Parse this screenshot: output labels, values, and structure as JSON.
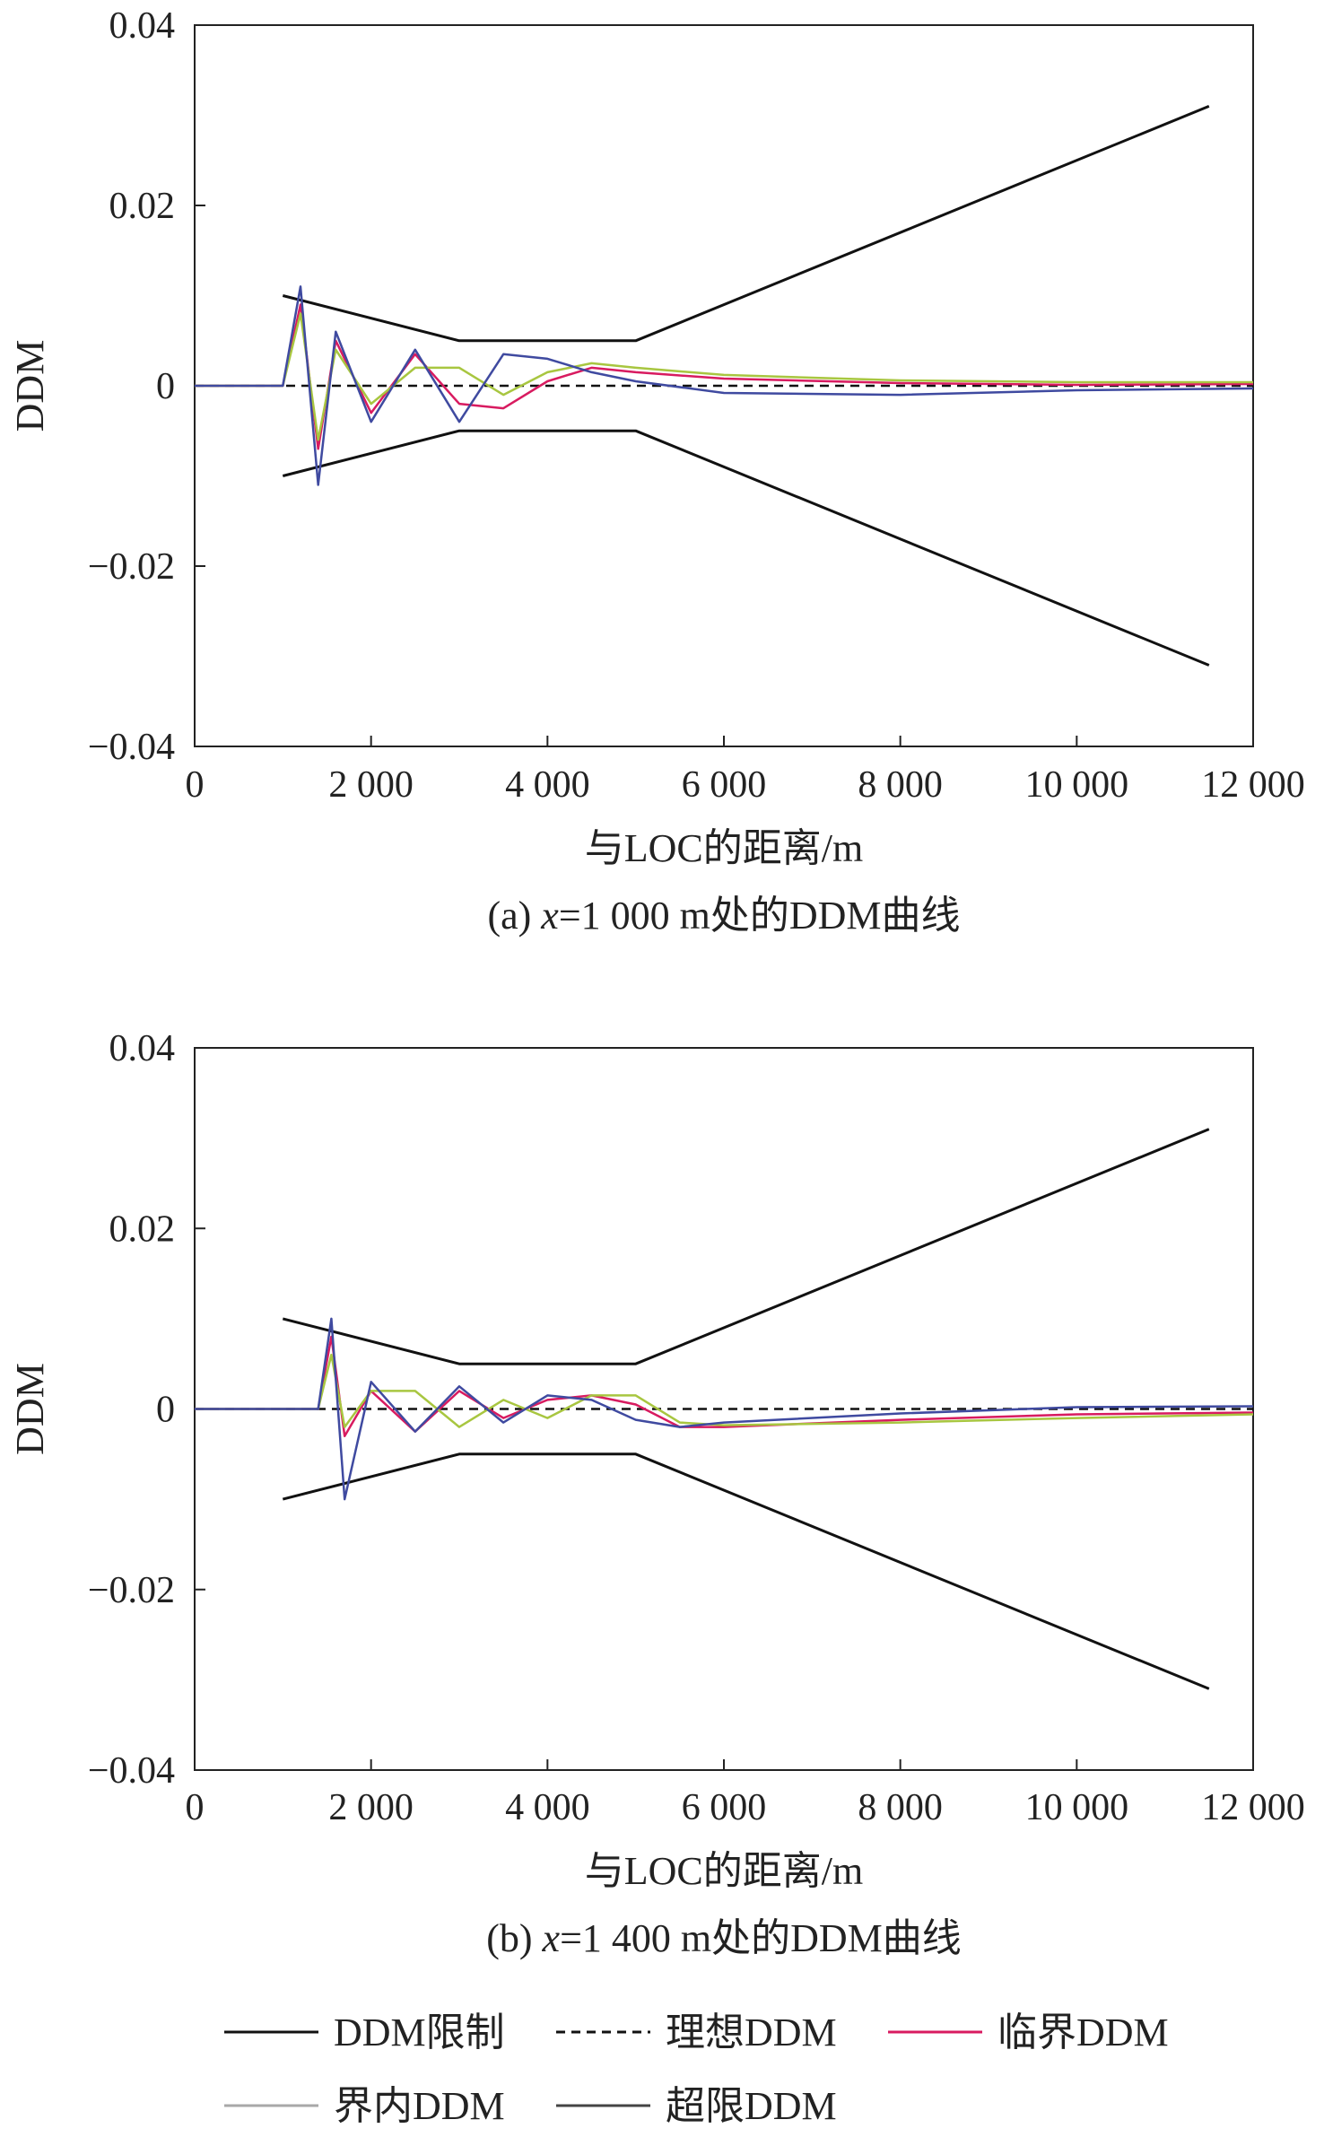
{
  "chart_data": [
    {
      "type": "line",
      "caption": "(a) x=1 000 m处的DDM曲线",
      "caption_prefix": "(a) ",
      "caption_var": "x",
      "caption_rest": "=1 000 m处的DDM曲线",
      "xlabel": "与LOC的距离/m",
      "ylabel": "DDM",
      "xlim": [
        0,
        12000
      ],
      "ylim": [
        -0.04,
        0.04
      ],
      "xticks": [
        0,
        2000,
        4000,
        6000,
        8000,
        10000,
        12000
      ],
      "xtick_labels": [
        "0",
        "2 000",
        "4 000",
        "6 000",
        "8 000",
        "10 000",
        "12 000"
      ],
      "yticks": [
        0.04,
        0.02,
        0,
        -0.02,
        -0.04
      ],
      "ytick_labels": [
        "0.04",
        "0.02",
        "0",
        "−0.02",
        "−0.04"
      ],
      "grid": false,
      "series": [
        {
          "name": "DDM限制",
          "color": "#111111",
          "dash": "none",
          "x": [
            1000,
            3000,
            5000,
            11500
          ],
          "y": [
            0.01,
            0.005,
            0.005,
            0.031
          ]
        },
        {
          "name": "DDM限制",
          "color": "#111111",
          "dash": "none",
          "x": [
            1000,
            3000,
            5000,
            11500
          ],
          "y": [
            -0.01,
            -0.005,
            -0.005,
            -0.031
          ]
        },
        {
          "name": "理想DDM",
          "color": "#111111",
          "dash": "dashed",
          "x": [
            0,
            12000
          ],
          "y": [
            0,
            0
          ]
        },
        {
          "name": "临界DDM",
          "color": "#d81b60",
          "dash": "none",
          "x": [
            0,
            1000,
            1200,
            1400,
            1600,
            2000,
            2500,
            3000,
            3500,
            4000,
            4500,
            5000,
            6000,
            8000,
            10000,
            12000
          ],
          "y": [
            0,
            0,
            0.009,
            -0.007,
            0.005,
            -0.003,
            0.0035,
            -0.002,
            -0.0025,
            0.0005,
            0.002,
            0.0015,
            0.0008,
            0.0003,
            0.0001,
            0.0002
          ]
        },
        {
          "name": "界内DDM",
          "color": "#a8c640",
          "dash": "none",
          "x": [
            0,
            1000,
            1200,
            1400,
            1600,
            2000,
            2500,
            3000,
            3500,
            4000,
            4500,
            5000,
            6000,
            8000,
            10000,
            12000
          ],
          "y": [
            0,
            0,
            0.008,
            -0.006,
            0.004,
            -0.002,
            0.002,
            0.002,
            -0.001,
            0.0015,
            0.0025,
            0.002,
            0.0012,
            0.0006,
            0.0004,
            0.0004
          ]
        },
        {
          "name": "超限DDM",
          "color": "#3f4aa0",
          "dash": "none",
          "x": [
            0,
            1000,
            1200,
            1400,
            1600,
            2000,
            2500,
            3000,
            3500,
            4000,
            4500,
            5000,
            6000,
            8000,
            10000,
            12000
          ],
          "y": [
            0,
            0,
            0.011,
            -0.011,
            0.006,
            -0.004,
            0.004,
            -0.004,
            0.0035,
            0.003,
            0.0015,
            0.0005,
            -0.0008,
            -0.001,
            -0.0005,
            -0.0003
          ]
        }
      ]
    },
    {
      "type": "line",
      "caption": "(b) x=1 400 m处的DDM曲线",
      "caption_prefix": "(b) ",
      "caption_var": "x",
      "caption_rest": "=1 400 m处的DDM曲线",
      "xlabel": "与LOC的距离/m",
      "ylabel": "DDM",
      "xlim": [
        0,
        12000
      ],
      "ylim": [
        -0.04,
        0.04
      ],
      "xticks": [
        0,
        2000,
        4000,
        6000,
        8000,
        10000,
        12000
      ],
      "xtick_labels": [
        "0",
        "2 000",
        "4 000",
        "6 000",
        "8 000",
        "10 000",
        "12 000"
      ],
      "yticks": [
        0.04,
        0.02,
        0,
        -0.02,
        -0.04
      ],
      "ytick_labels": [
        "0.04",
        "0.02",
        "0",
        "−0.02",
        "−0.04"
      ],
      "grid": false,
      "series": [
        {
          "name": "DDM限制",
          "color": "#111111",
          "dash": "none",
          "x": [
            1000,
            3000,
            5000,
            11500
          ],
          "y": [
            0.01,
            0.005,
            0.005,
            0.031
          ]
        },
        {
          "name": "DDM限制",
          "color": "#111111",
          "dash": "none",
          "x": [
            1000,
            3000,
            5000,
            11500
          ],
          "y": [
            -0.01,
            -0.005,
            -0.005,
            -0.031
          ]
        },
        {
          "name": "理想DDM",
          "color": "#111111",
          "dash": "dashed",
          "x": [
            0,
            12000
          ],
          "y": [
            0,
            0
          ]
        },
        {
          "name": "临界DDM",
          "color": "#d81b60",
          "dash": "none",
          "x": [
            0,
            1400,
            1550,
            1700,
            2000,
            2500,
            3000,
            3500,
            4000,
            4500,
            5000,
            5500,
            6000,
            8000,
            10000,
            12000
          ],
          "y": [
            0,
            0,
            0.008,
            -0.003,
            0.002,
            -0.0025,
            0.002,
            -0.001,
            0.001,
            0.0015,
            0.0005,
            -0.002,
            -0.002,
            -0.0012,
            -0.0006,
            -0.0004
          ]
        },
        {
          "name": "界内DDM",
          "color": "#a8c640",
          "dash": "none",
          "x": [
            0,
            1400,
            1550,
            1700,
            2000,
            2500,
            3000,
            3500,
            4000,
            4500,
            5000,
            5500,
            6000,
            8000,
            10000,
            12000
          ],
          "y": [
            0,
            0,
            0.006,
            -0.002,
            0.002,
            0.002,
            -0.002,
            0.001,
            -0.001,
            0.0015,
            0.0015,
            -0.0015,
            -0.0018,
            -0.0015,
            -0.001,
            -0.0006
          ]
        },
        {
          "name": "超限DDM",
          "color": "#3f4aa0",
          "dash": "none",
          "x": [
            0,
            1400,
            1550,
            1700,
            2000,
            2500,
            3000,
            3500,
            4000,
            4500,
            5000,
            5500,
            6000,
            8000,
            10000,
            12000
          ],
          "y": [
            0,
            0,
            0.01,
            -0.01,
            0.003,
            -0.0025,
            0.0025,
            -0.0015,
            0.0015,
            0.001,
            -0.0012,
            -0.002,
            -0.0015,
            -0.0005,
            0.0002,
            0.0003
          ]
        }
      ]
    }
  ],
  "legend": {
    "items": [
      {
        "label": "DDM限制",
        "color": "#111111",
        "dash": "none"
      },
      {
        "label": "理想DDM",
        "color": "#111111",
        "dash": "dashed"
      },
      {
        "label": "临界DDM",
        "color": "#d81b60",
        "dash": "none"
      },
      {
        "label": "界内DDM",
        "color": "#a8a8a8",
        "dash": "none"
      },
      {
        "label": "超限DDM",
        "color": "#444444",
        "dash": "none"
      }
    ]
  }
}
